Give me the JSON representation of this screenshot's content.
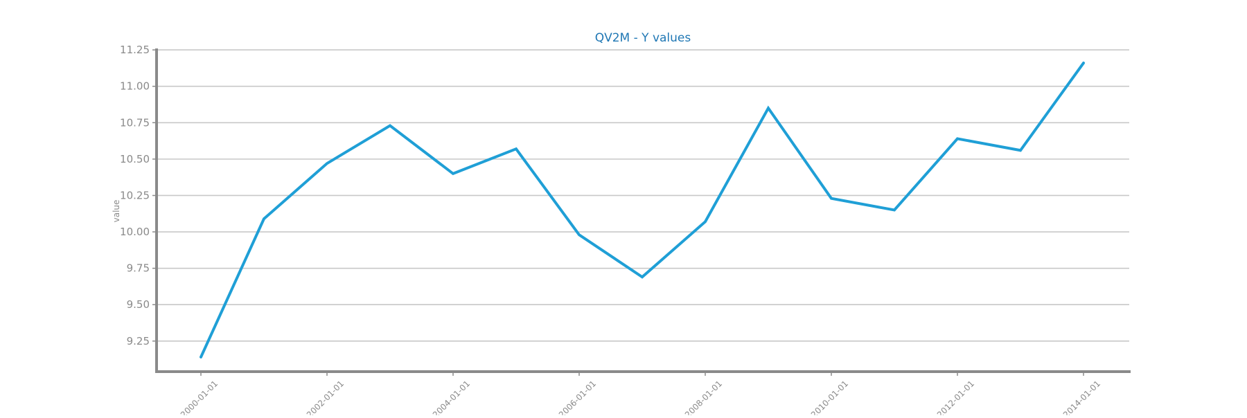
{
  "chart_data": {
    "type": "line",
    "title": "QV2M - Y values",
    "xlabel": "",
    "ylabel": "value",
    "x": [
      "2000-01-01",
      "2001-01-01",
      "2002-01-01",
      "2003-01-01",
      "2004-01-01",
      "2005-01-01",
      "2006-01-01",
      "2007-01-01",
      "2008-01-01",
      "2009-01-01",
      "2010-01-01",
      "2011-01-01",
      "2012-01-01",
      "2013-01-01",
      "2014-01-01"
    ],
    "x_tick_labels": [
      "2000-01-01",
      "2002-01-01",
      "2004-01-01",
      "2006-01-01",
      "2008-01-01",
      "2010-01-01",
      "2012-01-01",
      "2014-01-01"
    ],
    "y_ticks": [
      "9.25",
      "9.50",
      "9.75",
      "10.00",
      "10.25",
      "10.50",
      "10.75",
      "11.00",
      "11.25"
    ],
    "ylim": [
      9.04,
      11.26
    ],
    "grid": "horizontal",
    "series": [
      {
        "values": [
          9.14,
          10.09,
          10.47,
          10.73,
          10.4,
          10.57,
          9.98,
          9.69,
          10.07,
          10.85,
          10.23,
          10.15,
          10.64,
          10.56,
          11.16
        ]
      }
    ],
    "colors": {
      "line": "#1f9fd6",
      "title": "#1f77b4",
      "grid": "#c8c8c8",
      "axis": "#8a8a8a",
      "text": "#8a8a8a"
    }
  }
}
